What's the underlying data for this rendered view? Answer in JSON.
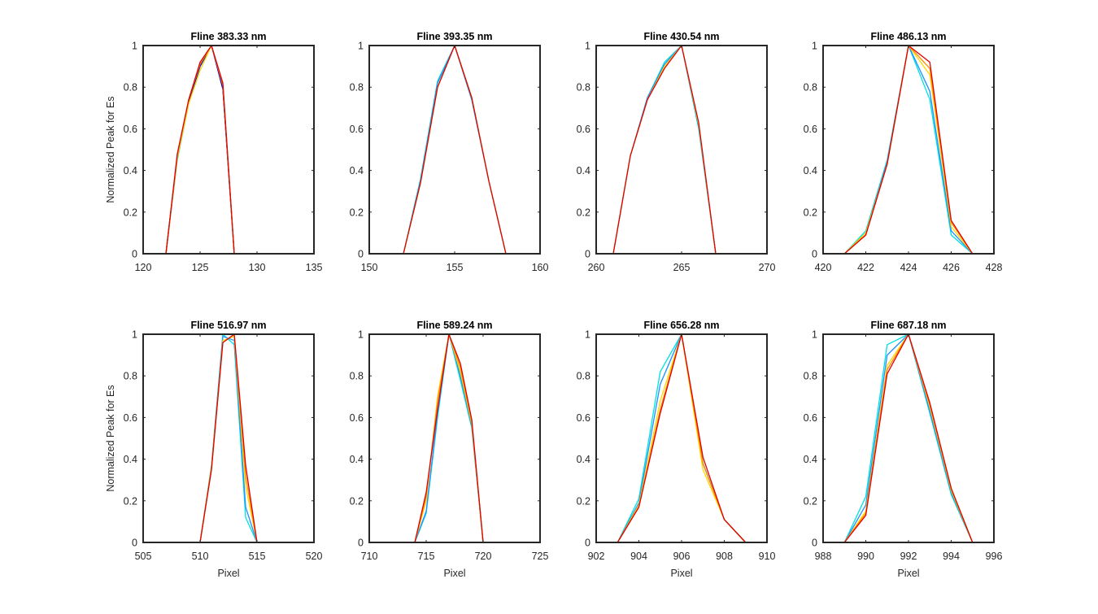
{
  "figure": {
    "background": "#ffffff",
    "axes_color": "#262626",
    "colormap_start": "#00e5e5",
    "colormap_end": "#e00000"
  },
  "chart_data": [
    {
      "type": "line",
      "title": "Fline 383.33 nm",
      "xlabel": "",
      "ylabel": "Normalized Peak for Es",
      "xlim": [
        120,
        135
      ],
      "ylim": [
        0,
        1
      ],
      "xticks": [
        120,
        125,
        130,
        135
      ],
      "yticks": [
        0,
        0.2,
        0.4,
        0.6,
        0.8,
        1
      ],
      "xtick_labels": [
        "120",
        "125",
        "130",
        "135"
      ],
      "ytick_labels": [
        "0",
        "0.2",
        "0.4",
        "0.6",
        "0.8",
        "1"
      ],
      "x": [
        121,
        122,
        123,
        124,
        125,
        126,
        127,
        128,
        129,
        130,
        131
      ],
      "series": [
        {
          "color": "#00e0e0",
          "values": [
            0,
            0,
            0.45,
            0.72,
            0.9,
            1.0,
            0.8,
            0,
            0,
            0,
            0
          ]
        },
        {
          "color": "#1e90ff",
          "values": [
            0,
            0,
            0.46,
            0.73,
            0.91,
            1.0,
            0.8,
            0,
            0,
            0,
            0
          ]
        },
        {
          "color": "#0000cd",
          "values": [
            0,
            0,
            0.47,
            0.73,
            0.9,
            1.0,
            0.79,
            0,
            0,
            0,
            0
          ]
        },
        {
          "color": "#ffd700",
          "values": [
            0,
            0,
            0.46,
            0.72,
            0.88,
            1.0,
            0.81,
            0,
            0,
            0,
            0
          ]
        },
        {
          "color": "#ff8c00",
          "values": [
            0,
            0,
            0.47,
            0.74,
            0.91,
            1.0,
            0.81,
            0,
            0,
            0,
            0
          ]
        },
        {
          "color": "#e00000",
          "values": [
            0,
            0,
            0.48,
            0.74,
            0.92,
            1.0,
            0.82,
            0,
            0,
            0,
            0
          ]
        }
      ]
    },
    {
      "type": "line",
      "title": "Fline 393.35 nm",
      "xlabel": "",
      "ylabel": "",
      "xlim": [
        150,
        160
      ],
      "ylim": [
        0,
        1
      ],
      "xticks": [
        150,
        155,
        160
      ],
      "yticks": [
        0,
        0.2,
        0.4,
        0.6,
        0.8,
        1
      ],
      "xtick_labels": [
        "150",
        "155",
        "160"
      ],
      "ytick_labels": [
        "0",
        "0.2",
        "0.4",
        "0.6",
        "0.8",
        "1"
      ],
      "x": [
        151,
        152,
        153,
        154,
        155,
        156,
        157,
        158,
        159
      ],
      "series": [
        {
          "color": "#00e0e0",
          "values": [
            0,
            0,
            0.36,
            0.83,
            1.0,
            0.74,
            0.35,
            0,
            0
          ]
        },
        {
          "color": "#1e90ff",
          "values": [
            0,
            0,
            0.35,
            0.82,
            1.0,
            0.74,
            0.35,
            0,
            0
          ]
        },
        {
          "color": "#ffd700",
          "values": [
            0,
            0,
            0.34,
            0.8,
            1.0,
            0.75,
            0.35,
            0,
            0
          ]
        },
        {
          "color": "#e00000",
          "values": [
            0,
            0,
            0.34,
            0.8,
            1.0,
            0.75,
            0.35,
            0,
            0
          ]
        }
      ]
    },
    {
      "type": "line",
      "title": "Fline 430.54 nm",
      "xlabel": "",
      "ylabel": "",
      "xlim": [
        260,
        270
      ],
      "ylim": [
        0,
        1
      ],
      "xticks": [
        260,
        265,
        270
      ],
      "yticks": [
        0,
        0.2,
        0.4,
        0.6,
        0.8,
        1
      ],
      "xtick_labels": [
        "260",
        "265",
        "270"
      ],
      "ytick_labels": [
        "0",
        "0.2",
        "0.4",
        "0.6",
        "0.8",
        "1"
      ],
      "x": [
        260,
        261,
        262,
        263,
        264,
        265,
        266,
        267,
        268,
        269,
        270
      ],
      "series": [
        {
          "color": "#00e0e0",
          "values": [
            0,
            0,
            0.47,
            0.75,
            0.92,
            1.0,
            0.6,
            0,
            0,
            0,
            0
          ]
        },
        {
          "color": "#1e90ff",
          "values": [
            0,
            0,
            0.47,
            0.75,
            0.91,
            1.0,
            0.61,
            0,
            0,
            0,
            0
          ]
        },
        {
          "color": "#ffd700",
          "values": [
            0,
            0,
            0.47,
            0.74,
            0.9,
            1.0,
            0.62,
            0,
            0,
            0,
            0
          ]
        },
        {
          "color": "#e00000",
          "values": [
            0,
            0,
            0.47,
            0.74,
            0.89,
            1.0,
            0.63,
            0,
            0,
            0,
            0
          ]
        }
      ]
    },
    {
      "type": "line",
      "title": "Fline 486.13 nm",
      "xlabel": "",
      "ylabel": "",
      "xlim": [
        420,
        428
      ],
      "ylim": [
        0,
        1
      ],
      "xticks": [
        420,
        422,
        424,
        426,
        428
      ],
      "yticks": [
        0,
        0.2,
        0.4,
        0.6,
        0.8,
        1
      ],
      "xtick_labels": [
        "420",
        "422",
        "424",
        "426",
        "428"
      ],
      "ytick_labels": [
        "0",
        "0.2",
        "0.4",
        "0.6",
        "0.8",
        "1"
      ],
      "x": [
        421,
        422,
        423,
        424,
        425,
        426,
        427
      ],
      "series": [
        {
          "color": "#00e0e0",
          "values": [
            0,
            0.11,
            0.45,
            1.0,
            0.74,
            0.09,
            0
          ]
        },
        {
          "color": "#1e90ff",
          "values": [
            0,
            0.1,
            0.44,
            1.0,
            0.78,
            0.11,
            0
          ]
        },
        {
          "color": "#ffd700",
          "values": [
            0,
            0.1,
            0.43,
            1.0,
            0.86,
            0.13,
            0
          ]
        },
        {
          "color": "#ff8c00",
          "values": [
            0,
            0.09,
            0.43,
            1.0,
            0.89,
            0.15,
            0
          ]
        },
        {
          "color": "#e00000",
          "values": [
            0,
            0.09,
            0.43,
            1.0,
            0.92,
            0.16,
            0
          ]
        }
      ]
    },
    {
      "type": "line",
      "title": "Fline 516.97 nm",
      "xlabel": "Pixel",
      "ylabel": "Normalized Peak for Es",
      "xlim": [
        505,
        520
      ],
      "ylim": [
        0,
        1
      ],
      "xticks": [
        505,
        510,
        515,
        520
      ],
      "yticks": [
        0,
        0.2,
        0.4,
        0.6,
        0.8,
        1
      ],
      "xtick_labels": [
        "505",
        "510",
        "515",
        "520"
      ],
      "ytick_labels": [
        "0",
        "0.2",
        "0.4",
        "0.6",
        "0.8",
        "1"
      ],
      "x": [
        507,
        508,
        509,
        510,
        511,
        512,
        513,
        514,
        515,
        516,
        517
      ],
      "series": [
        {
          "color": "#00e0e0",
          "values": [
            0,
            0,
            0,
            0,
            0.37,
            1.0,
            0.95,
            0.12,
            0,
            0,
            0
          ]
        },
        {
          "color": "#1e90ff",
          "values": [
            0,
            0,
            0,
            0,
            0.36,
            0.99,
            0.97,
            0.17,
            0,
            0,
            0
          ]
        },
        {
          "color": "#ffd700",
          "values": [
            0,
            0,
            0,
            0,
            0.36,
            0.97,
            0.99,
            0.27,
            0,
            0,
            0
          ]
        },
        {
          "color": "#ff8c00",
          "values": [
            0,
            0,
            0,
            0,
            0.35,
            0.96,
            1.0,
            0.32,
            0,
            0,
            0
          ]
        },
        {
          "color": "#e00000",
          "values": [
            0,
            0,
            0,
            0,
            0.35,
            0.96,
            1.0,
            0.37,
            0,
            0,
            0
          ]
        }
      ]
    },
    {
      "type": "line",
      "title": "Fline 589.24 nm",
      "xlabel": "Pixel",
      "ylabel": "",
      "xlim": [
        710,
        725
      ],
      "ylim": [
        0,
        1
      ],
      "xticks": [
        710,
        715,
        720,
        725
      ],
      "yticks": [
        0,
        0.2,
        0.4,
        0.6,
        0.8,
        1
      ],
      "xtick_labels": [
        "710",
        "715",
        "720",
        "725"
      ],
      "ytick_labels": [
        "0",
        "0.2",
        "0.4",
        "0.6",
        "0.8",
        "1"
      ],
      "x": [
        712,
        713,
        714,
        715,
        716,
        717,
        718,
        719,
        720,
        721,
        722
      ],
      "series": [
        {
          "color": "#00e0e0",
          "values": [
            0,
            0,
            0,
            0.14,
            0.6,
            1.0,
            0.78,
            0.55,
            0,
            0,
            0
          ]
        },
        {
          "color": "#1e90ff",
          "values": [
            0,
            0,
            0,
            0.15,
            0.62,
            1.0,
            0.8,
            0.56,
            0,
            0,
            0
          ]
        },
        {
          "color": "#ffd700",
          "values": [
            0,
            0,
            0,
            0.2,
            0.7,
            1.0,
            0.82,
            0.57,
            0,
            0,
            0
          ]
        },
        {
          "color": "#ff8c00",
          "values": [
            0,
            0,
            0,
            0.22,
            0.68,
            1.0,
            0.84,
            0.58,
            0,
            0,
            0
          ]
        },
        {
          "color": "#e00000",
          "values": [
            0,
            0,
            0,
            0.24,
            0.64,
            1.0,
            0.86,
            0.59,
            0,
            0,
            0
          ]
        }
      ]
    },
    {
      "type": "line",
      "title": "Fline 656.28 nm",
      "xlabel": "Pixel",
      "ylabel": "",
      "xlim": [
        902,
        910
      ],
      "ylim": [
        0,
        1
      ],
      "xticks": [
        902,
        904,
        906,
        908,
        910
      ],
      "yticks": [
        0,
        0.2,
        0.4,
        0.6,
        0.8,
        1
      ],
      "xtick_labels": [
        "902",
        "904",
        "906",
        "908",
        "910"
      ],
      "ytick_labels": [
        "0",
        "0.2",
        "0.4",
        "0.6",
        "0.8",
        "1"
      ],
      "x": [
        903,
        904,
        905,
        906,
        907,
        908,
        909
      ],
      "series": [
        {
          "color": "#00e0e0",
          "values": [
            0,
            0.21,
            0.82,
            1.0,
            0.38,
            0.11,
            0
          ]
        },
        {
          "color": "#1e90ff",
          "values": [
            0,
            0.19,
            0.76,
            1.0,
            0.38,
            0.11,
            0
          ]
        },
        {
          "color": "#ffd700",
          "values": [
            0,
            0.18,
            0.68,
            1.0,
            0.35,
            0.11,
            0
          ]
        },
        {
          "color": "#ff8c00",
          "values": [
            0,
            0.17,
            0.64,
            1.0,
            0.38,
            0.11,
            0
          ]
        },
        {
          "color": "#e00000",
          "values": [
            0,
            0.17,
            0.62,
            1.0,
            0.41,
            0.11,
            0
          ]
        }
      ]
    },
    {
      "type": "line",
      "title": "Fline 687.18 nm",
      "xlabel": "Pixel",
      "ylabel": "",
      "xlim": [
        988,
        996
      ],
      "ylim": [
        0,
        1
      ],
      "xticks": [
        988,
        990,
        992,
        994,
        996
      ],
      "yticks": [
        0,
        0.2,
        0.4,
        0.6,
        0.8,
        1
      ],
      "xtick_labels": [
        "988",
        "990",
        "992",
        "994",
        "996"
      ],
      "ytick_labels": [
        "0",
        "0.2",
        "0.4",
        "0.6",
        "0.8",
        "1"
      ],
      "x": [
        988,
        989,
        990,
        991,
        992,
        993,
        994,
        995,
        996
      ],
      "series": [
        {
          "color": "#00e0e0",
          "values": [
            0,
            0,
            0.22,
            0.95,
            1.0,
            0.62,
            0.23,
            0,
            0
          ]
        },
        {
          "color": "#1e90ff",
          "values": [
            0,
            0,
            0.18,
            0.9,
            1.0,
            0.63,
            0.24,
            0,
            0
          ]
        },
        {
          "color": "#ffd700",
          "values": [
            0,
            0,
            0.15,
            0.85,
            1.0,
            0.65,
            0.25,
            0,
            0
          ]
        },
        {
          "color": "#ff8c00",
          "values": [
            0,
            0,
            0.14,
            0.83,
            1.0,
            0.66,
            0.26,
            0,
            0
          ]
        },
        {
          "color": "#e00000",
          "values": [
            0,
            0,
            0.13,
            0.81,
            1.0,
            0.67,
            0.26,
            0,
            0
          ]
        }
      ]
    }
  ]
}
